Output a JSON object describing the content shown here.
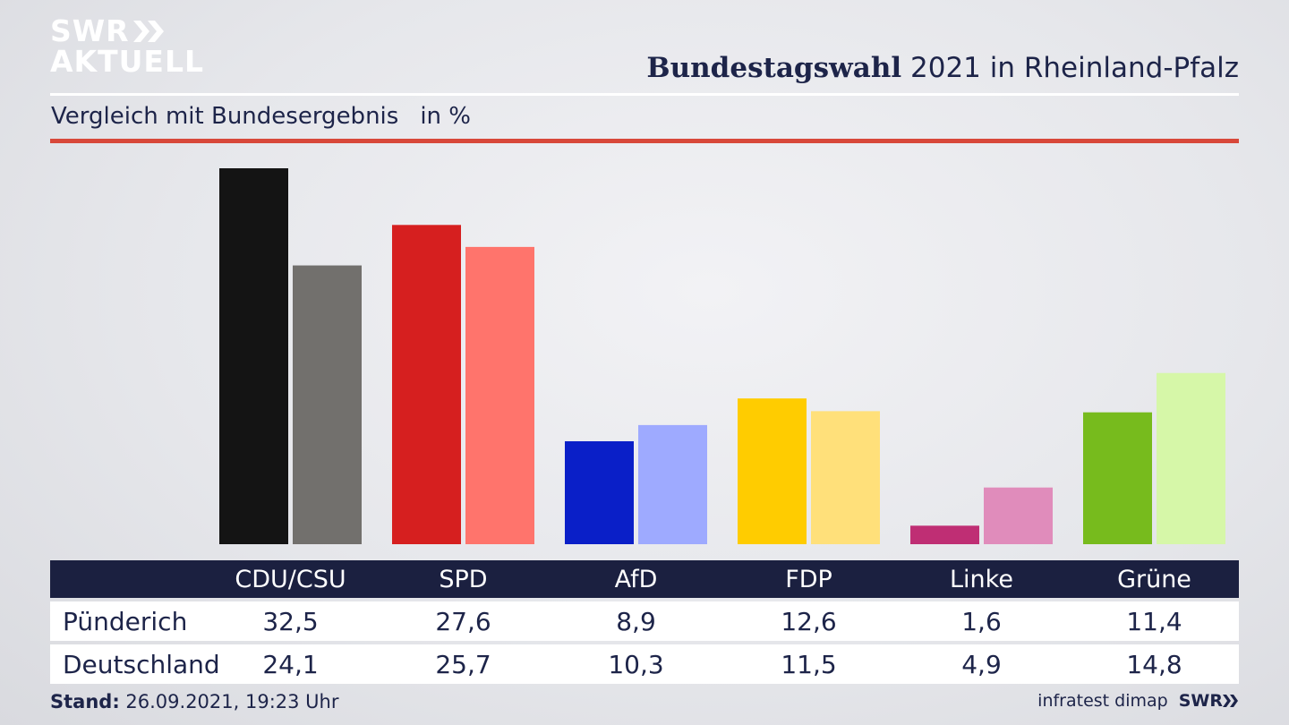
{
  "logo": {
    "line1": "SWR",
    "line2": "AKTUELL"
  },
  "header": {
    "title_bold": "Bundestagswahl",
    "title_rest": " 2021 in Rheinland-Pfalz",
    "subtitle": "Vergleich mit Bundesergebnis",
    "unit": "in %"
  },
  "footer": {
    "stand_label": "Stand:",
    "stand_value": " 26.09.2021, 19:23 Uhr",
    "source": "infratest dimap",
    "brand": "SWR"
  },
  "chart_data": {
    "type": "bar",
    "title": "",
    "xlabel": "",
    "ylabel": "",
    "ylim": [
      0,
      32.5
    ],
    "categories": [
      "CDU/CSU",
      "SPD",
      "AfD",
      "FDP",
      "Linke",
      "Grüne"
    ],
    "series": [
      {
        "name": "Pünderich",
        "values": [
          "32,5",
          "27,6",
          "8,9",
          "12,6",
          "1,6",
          "11,4"
        ],
        "colors": [
          "#141414",
          "#d61f1f",
          "#0a1fc8",
          "#ffcc00",
          "#bf2e74",
          "#77bb1d"
        ]
      },
      {
        "name": "Deutschland",
        "values": [
          "24,1",
          "25,7",
          "10,3",
          "11,5",
          "4,9",
          "14,8"
        ],
        "colors": [
          "#72706d",
          "#ff746c",
          "#9eaaff",
          "#ffe07a",
          "#e08cbb",
          "#d6f7a8"
        ]
      }
    ],
    "grid": false,
    "legend": "table-below"
  }
}
